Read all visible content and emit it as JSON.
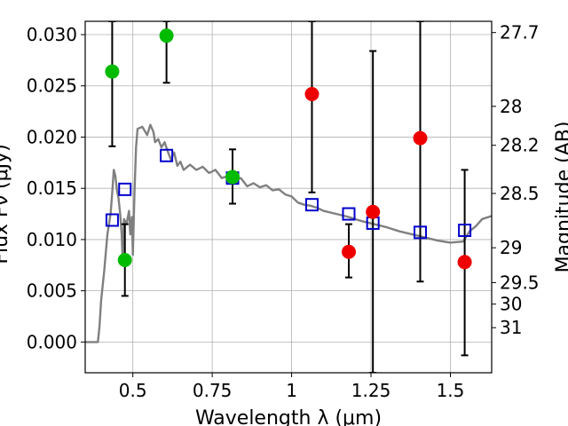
{
  "chart_data": {
    "type": "scatter",
    "xlabel": "Wavelength  λ (μm)",
    "ylabel": "Flux Fν (μJy)",
    "ylabel_right": "Magnitude (AB)",
    "xlim": [
      0.35,
      1.63
    ],
    "ylim": [
      -0.003,
      0.0313
    ],
    "grid": true,
    "x_ticks": [
      {
        "value": 0.5,
        "label": "0.5"
      },
      {
        "value": 0.75,
        "label": "0.75"
      },
      {
        "value": 1.0,
        "label": "1"
      },
      {
        "value": 1.25,
        "label": "1.25"
      },
      {
        "value": 1.5,
        "label": "1.5"
      }
    ],
    "y_ticks": [
      {
        "value": 0.0,
        "label": "0.000"
      },
      {
        "value": 0.005,
        "label": "0.005"
      },
      {
        "value": 0.01,
        "label": "0.010"
      },
      {
        "value": 0.015,
        "label": "0.015"
      },
      {
        "value": 0.02,
        "label": "0.020"
      },
      {
        "value": 0.025,
        "label": "0.025"
      },
      {
        "value": 0.03,
        "label": "0.030"
      }
    ],
    "y_right_ticks": [
      {
        "flux": 0.0302,
        "label": "27.7"
      },
      {
        "flux": 0.023,
        "label": "28"
      },
      {
        "flux": 0.0192,
        "label": "28.2"
      },
      {
        "flux": 0.0145,
        "label": "28.5"
      },
      {
        "flux": 0.0092,
        "label": "29"
      },
      {
        "flux": 0.0058,
        "label": "29.5"
      },
      {
        "flux": 0.0037,
        "label": "30"
      },
      {
        "flux": 0.0014,
        "label": "31"
      }
    ],
    "model_spectrum": {
      "color": "#808080",
      "points": [
        [
          0.35,
          0.0
        ],
        [
          0.39,
          0.0
        ],
        [
          0.395,
          0.0015
        ],
        [
          0.4,
          0.004
        ],
        [
          0.41,
          0.007
        ],
        [
          0.42,
          0.0105
        ],
        [
          0.43,
          0.0125
        ],
        [
          0.435,
          0.0145
        ],
        [
          0.44,
          0.0168
        ],
        [
          0.445,
          0.0162
        ],
        [
          0.45,
          0.0148
        ],
        [
          0.455,
          0.014
        ],
        [
          0.46,
          0.0125
        ],
        [
          0.465,
          0.0105
        ],
        [
          0.468,
          0.008
        ],
        [
          0.472,
          0.012
        ],
        [
          0.48,
          0.0115
        ],
        [
          0.488,
          0.0128
        ],
        [
          0.492,
          0.0105
        ],
        [
          0.497,
          0.0122
        ],
        [
          0.5,
          0.0085
        ],
        [
          0.505,
          0.0145
        ],
        [
          0.51,
          0.019
        ],
        [
          0.515,
          0.0208
        ],
        [
          0.53,
          0.021
        ],
        [
          0.545,
          0.0202
        ],
        [
          0.555,
          0.0212
        ],
        [
          0.565,
          0.0205
        ],
        [
          0.57,
          0.0195
        ],
        [
          0.58,
          0.0198
        ],
        [
          0.59,
          0.019
        ],
        [
          0.6,
          0.0195
        ],
        [
          0.61,
          0.0186
        ],
        [
          0.62,
          0.0178
        ],
        [
          0.63,
          0.0185
        ],
        [
          0.64,
          0.0172
        ],
        [
          0.65,
          0.0176
        ],
        [
          0.66,
          0.0168
        ],
        [
          0.68,
          0.0173
        ],
        [
          0.7,
          0.0168
        ],
        [
          0.72,
          0.0171
        ],
        [
          0.74,
          0.0165
        ],
        [
          0.76,
          0.0168
        ],
        [
          0.78,
          0.016
        ],
        [
          0.8,
          0.0162
        ],
        [
          0.82,
          0.0158
        ],
        [
          0.84,
          0.016
        ],
        [
          0.86,
          0.0152
        ],
        [
          0.88,
          0.0155
        ],
        [
          0.9,
          0.0151
        ],
        [
          0.92,
          0.0153
        ],
        [
          0.94,
          0.0148
        ],
        [
          0.96,
          0.0149
        ],
        [
          0.98,
          0.0144
        ],
        [
          1.0,
          0.0142
        ],
        [
          1.02,
          0.0136
        ],
        [
          1.04,
          0.0134
        ],
        [
          1.06,
          0.0133
        ],
        [
          1.08,
          0.0131
        ],
        [
          1.1,
          0.0128
        ],
        [
          1.14,
          0.0125
        ],
        [
          1.18,
          0.0122
        ],
        [
          1.22,
          0.0118
        ],
        [
          1.26,
          0.0115
        ],
        [
          1.3,
          0.0112
        ],
        [
          1.34,
          0.0108
        ],
        [
          1.38,
          0.0105
        ],
        [
          1.42,
          0.0102
        ],
        [
          1.46,
          0.0099
        ],
        [
          1.5,
          0.0097
        ],
        [
          1.54,
          0.0098
        ],
        [
          1.56,
          0.0108
        ],
        [
          1.58,
          0.0113
        ],
        [
          1.6,
          0.012
        ],
        [
          1.63,
          0.0123
        ]
      ]
    },
    "series": [
      {
        "marker": "square",
        "color": "#0000cc",
        "points": [
          {
            "x": 0.435,
            "y": 0.0119
          },
          {
            "x": 0.475,
            "y": 0.0149
          },
          {
            "x": 0.606,
            "y": 0.0182
          },
          {
            "x": 0.814,
            "y": 0.016
          },
          {
            "x": 1.064,
            "y": 0.0134
          },
          {
            "x": 1.18,
            "y": 0.0125
          },
          {
            "x": 1.256,
            "y": 0.0116
          },
          {
            "x": 1.405,
            "y": 0.0107
          },
          {
            "x": 1.545,
            "y": 0.0109
          }
        ]
      },
      {
        "marker": "circle",
        "color": "#00bb00",
        "points": [
          {
            "x": 0.435,
            "y": 0.0264,
            "err_low": 0.0191,
            "err_high": 0.0313
          },
          {
            "x": 0.475,
            "y": 0.008,
            "err_low": 0.0045,
            "err_high": 0.0115
          },
          {
            "x": 0.606,
            "y": 0.0299,
            "err_low": 0.0253,
            "err_high": 0.0313
          },
          {
            "x": 0.814,
            "y": 0.0161,
            "err_low": 0.0135,
            "err_high": 0.0188
          }
        ]
      },
      {
        "marker": "circle",
        "color": "#ee0000",
        "points": [
          {
            "x": 1.064,
            "y": 0.0242,
            "err_low": 0.0146,
            "err_high": 0.0313
          },
          {
            "x": 1.18,
            "y": 0.0088,
            "err_low": 0.0063,
            "err_high": 0.0115
          },
          {
            "x": 1.256,
            "y": 0.0127,
            "err_low": -0.003,
            "err_high": 0.0284
          },
          {
            "x": 1.405,
            "y": 0.0199,
            "err_low": 0.0059,
            "err_high": 0.0313
          },
          {
            "x": 1.545,
            "y": 0.0078,
            "err_low": -0.0013,
            "err_high": 0.0168
          }
        ]
      }
    ]
  }
}
